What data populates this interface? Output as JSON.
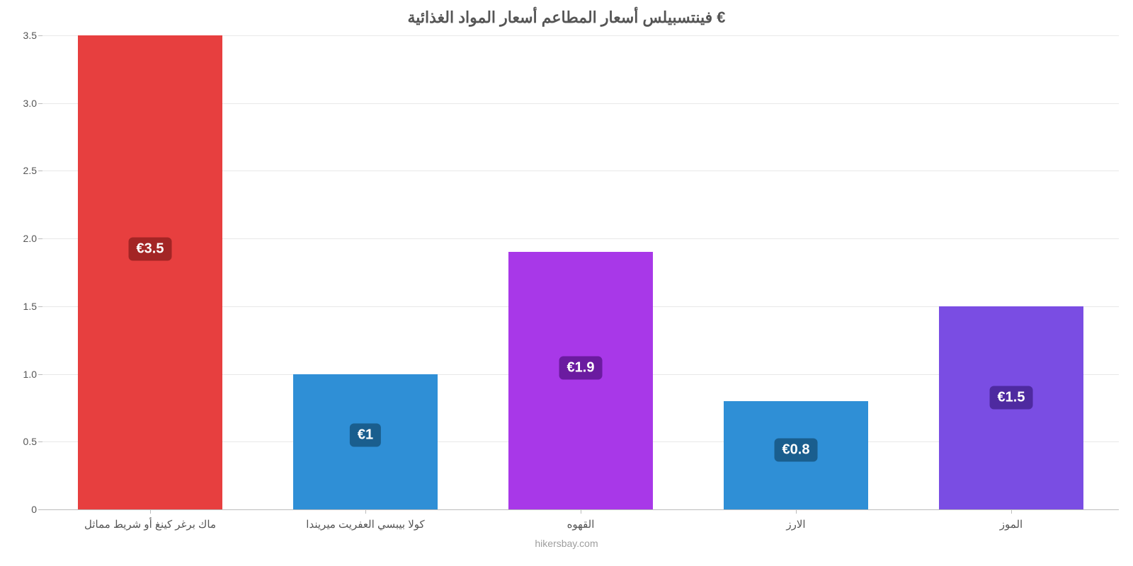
{
  "chart": {
    "type": "bar",
    "title": "فينتسبيلس أسعار المطاعم أسعار المواد الغذائية €",
    "title_fontsize": 22,
    "title_color": "#555555",
    "source": "hikersbay.com",
    "source_fontsize": 14,
    "source_color": "#9e9e9e",
    "background_color": "#ffffff",
    "grid_color": "#e8e8e8",
    "axis_color": "#bcbcbc",
    "tick_label_color": "#555555",
    "tick_label_fontsize": 14,
    "x_label_fontsize": 15,
    "ylim": [
      0,
      3.5
    ],
    "ytick_step": 0.5,
    "yticks": [
      0,
      0.5,
      1.0,
      1.5,
      2.0,
      2.5,
      3.0,
      3.5
    ],
    "ytick_labels": [
      "0",
      "0.5",
      "1.0",
      "1.5",
      "2.0",
      "2.5",
      "3.0",
      "3.5"
    ],
    "bar_width": 0.67,
    "label_fontsize": 20,
    "categories": [
      "ماك برغر كينغ أو شريط مماثل",
      "كولا بيبسي العفريت ميريندا",
      "القهوه",
      "الارز",
      "الموز"
    ],
    "values": [
      3.5,
      1.0,
      1.9,
      0.8,
      1.5
    ],
    "value_labels": [
      "€3.5",
      "€1",
      "€1.9",
      "€0.8",
      "€1.5"
    ],
    "bar_colors": [
      "#e73f3f",
      "#2f8fd6",
      "#a838e8",
      "#2f8fd6",
      "#7a4de3"
    ],
    "label_bg_colors": [
      "#a32525",
      "#1a5e8e",
      "#6b1ba0",
      "#1a5e8e",
      "#4e2aa0"
    ]
  }
}
